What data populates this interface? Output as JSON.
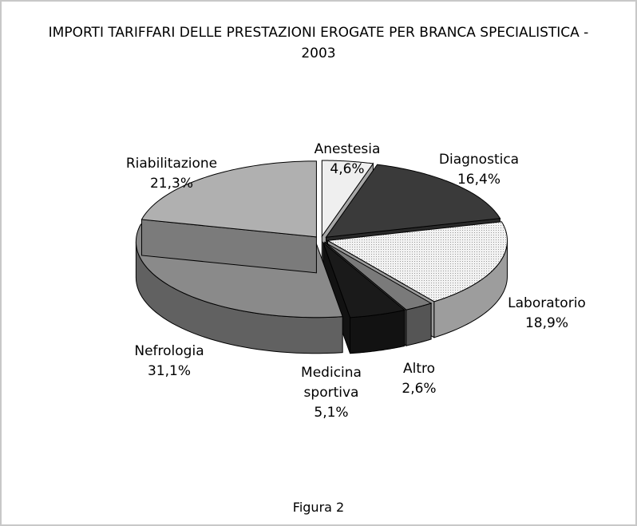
{
  "chart_data": {
    "type": "pie",
    "title": "IMPORTI TARIFFARI DELLE PRESTAZIONI EROGATE PER BRANCA SPECIALISTICA - 2003",
    "caption": "Figura 2",
    "categories": [
      "Anestesia",
      "Diagnostica",
      "Laboratorio",
      "Altro",
      "Medicina sportiva",
      "Nefrologia",
      "Riabilitazione"
    ],
    "values": [
      4.6,
      16.4,
      18.9,
      2.6,
      5.1,
      31.1,
      21.3
    ],
    "value_labels": [
      "4,6%",
      "16,4%",
      "18,9%",
      "2,6%",
      "5,1%",
      "31,1%",
      "21,3%"
    ],
    "colors": [
      "#efefef",
      "#3a3a3a",
      "#e0e0e0",
      "#7a7a7a",
      "#1a1a1a",
      "#8a8a8a",
      "#b0b0b0"
    ]
  }
}
